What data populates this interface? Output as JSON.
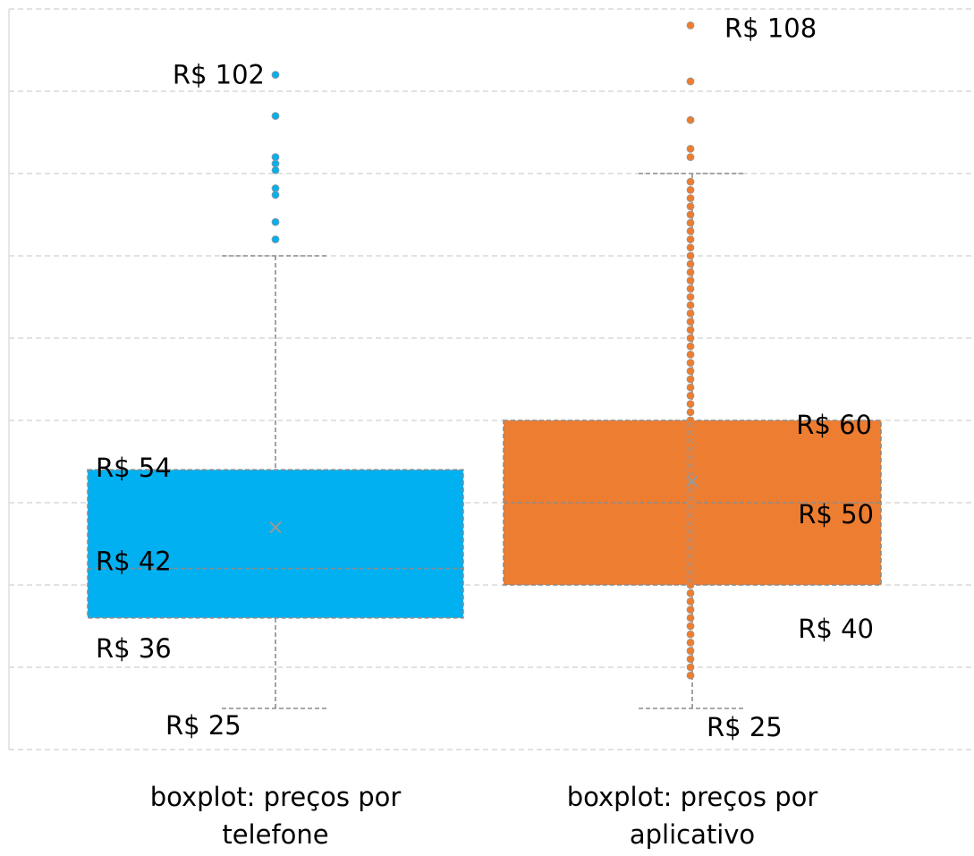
{
  "chart_data": {
    "type": "box",
    "categories": [
      "boxplot: preços por telefone",
      "boxplot: preços por aplicativo"
    ],
    "ylim": [
      20,
      110
    ],
    "yticks": [
      20,
      30,
      40,
      50,
      60,
      70,
      80,
      90,
      100,
      110
    ],
    "grid": true,
    "series": [
      {
        "name": "boxplot: preços por telefone",
        "color": "#00b0f0",
        "min": 25,
        "q1": 36,
        "median": 42,
        "q3": 54,
        "max": 80,
        "mean": 47,
        "outliers": [
          102,
          97,
          92,
          91.2,
          90.4,
          88.2,
          87.4,
          84.1,
          82
        ],
        "points": [],
        "value_labels": {
          "min": "R$ 25",
          "q1": "R$ 36",
          "median": "R$ 42",
          "q3": "R$ 54",
          "top": "R$ 102"
        }
      },
      {
        "name": "boxplot: preços por aplicativo",
        "color": "#ed7d31",
        "min": 25,
        "q1": 40,
        "median": 50,
        "q3": 60,
        "max": 90,
        "mean": 52.6,
        "outliers": [
          108,
          101.2,
          96.5,
          93,
          92
        ],
        "points": [
          29,
          30,
          31,
          32,
          33,
          34,
          35,
          36,
          37,
          38,
          39,
          40,
          41,
          42,
          43,
          44,
          45,
          46,
          47,
          48,
          49,
          50,
          51,
          52,
          53,
          54,
          55,
          56,
          57,
          58,
          59,
          60,
          61,
          62,
          63,
          64,
          65,
          66,
          67,
          68,
          69,
          70,
          71,
          72,
          73,
          74,
          75,
          76,
          77,
          78,
          79,
          80,
          81,
          82,
          83,
          84,
          85,
          86,
          87,
          88,
          89
        ],
        "value_labels": {
          "min": "R$ 25",
          "q1": "R$ 40",
          "median": "R$ 50",
          "q3": "R$ 60",
          "top": "R$ 108"
        }
      }
    ]
  }
}
